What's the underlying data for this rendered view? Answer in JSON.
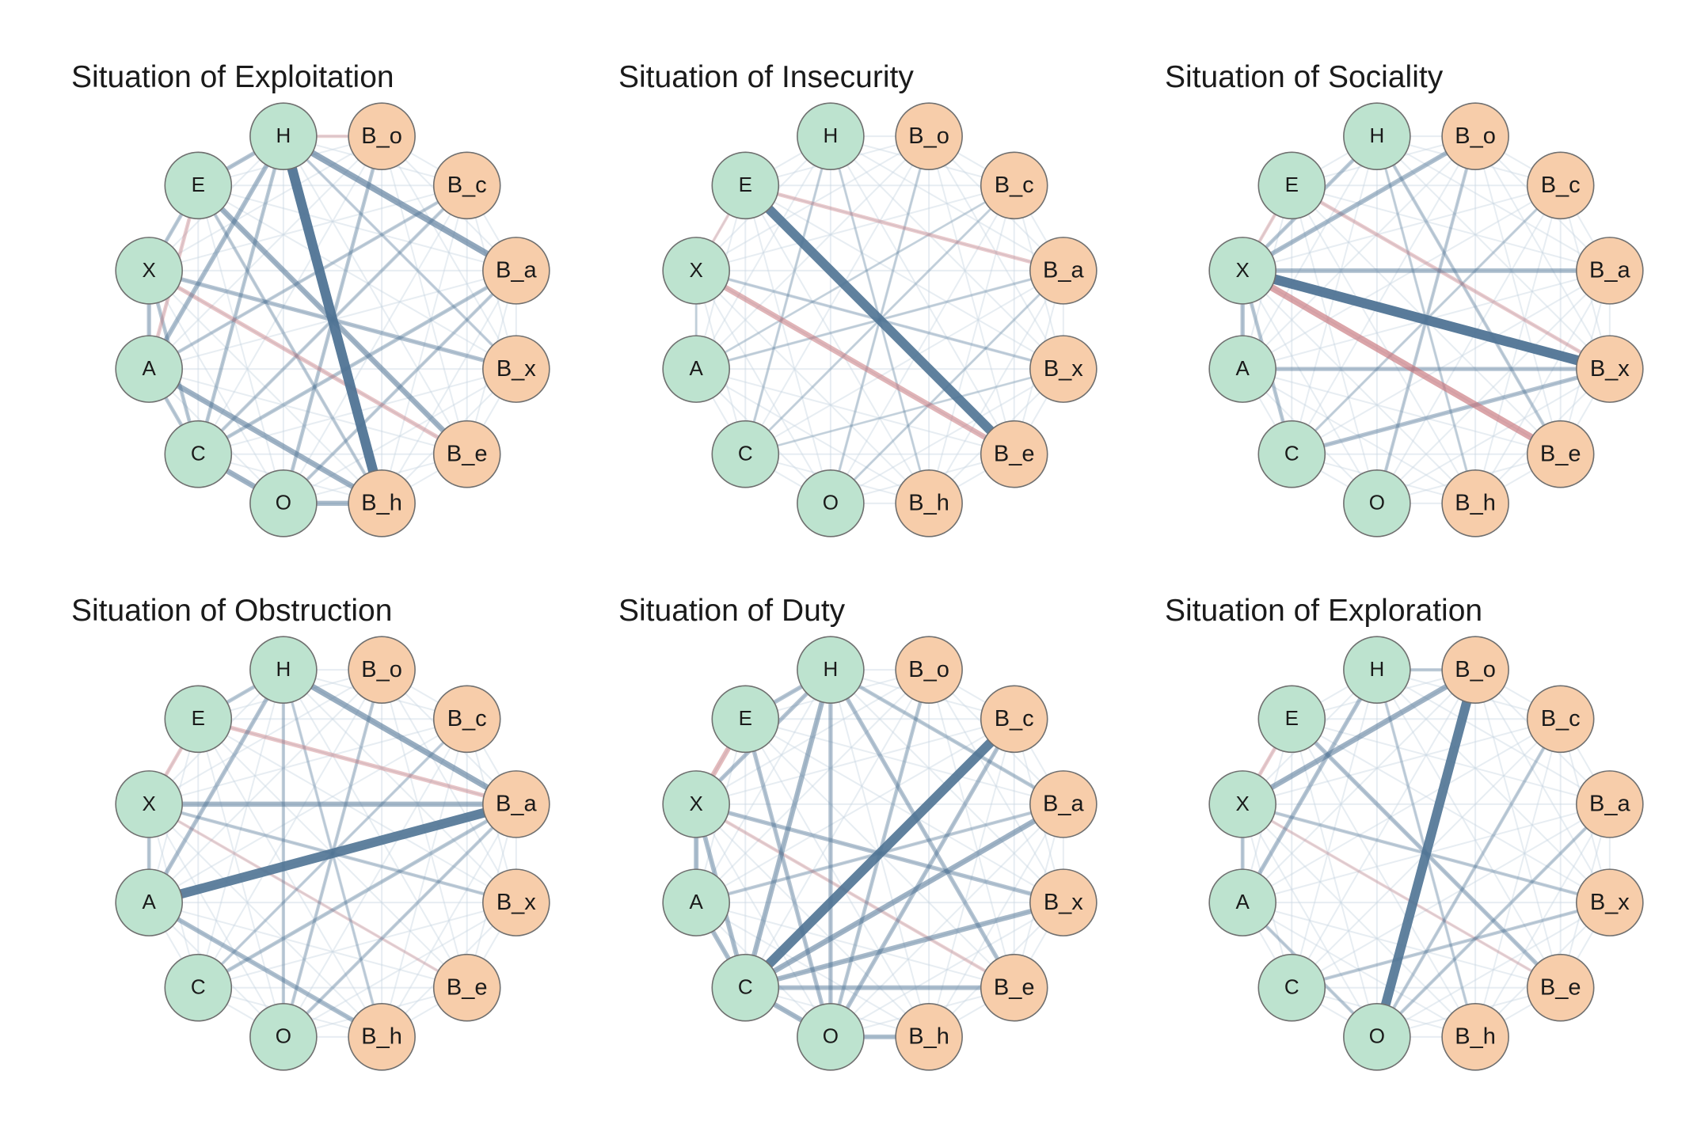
{
  "colors": {
    "trait_fill": "#bde3cf",
    "behavior_fill": "#f7cdaa",
    "node_stroke": "#6f6f6f",
    "positive_edge": "#4f7394",
    "negative_edge": "#c8777c"
  },
  "nodes": [
    {
      "id": "H",
      "label": "H",
      "group": "trait"
    },
    {
      "id": "B_o",
      "label": "B_o",
      "group": "behavior"
    },
    {
      "id": "B_c",
      "label": "B_c",
      "group": "behavior"
    },
    {
      "id": "B_a",
      "label": "B_a",
      "group": "behavior"
    },
    {
      "id": "B_x",
      "label": "B_x",
      "group": "behavior"
    },
    {
      "id": "B_e",
      "label": "B_e",
      "group": "behavior"
    },
    {
      "id": "B_h",
      "label": "B_h",
      "group": "behavior"
    },
    {
      "id": "O",
      "label": "O",
      "group": "trait"
    },
    {
      "id": "C",
      "label": "C",
      "group": "trait"
    },
    {
      "id": "A",
      "label": "A",
      "group": "trait"
    },
    {
      "id": "X",
      "label": "X",
      "group": "trait"
    },
    {
      "id": "E",
      "label": "E",
      "group": "trait"
    }
  ],
  "panels": [
    {
      "title": "Situation of Exploitation",
      "edges": [
        {
          "from": "H",
          "to": "B_h",
          "w": 0.95,
          "sign": "+"
        },
        {
          "from": "H",
          "to": "B_a",
          "w": 0.55,
          "sign": "+"
        },
        {
          "from": "E",
          "to": "B_e",
          "w": 0.45,
          "sign": "+"
        },
        {
          "from": "A",
          "to": "B_h",
          "w": 0.45,
          "sign": "+"
        },
        {
          "from": "C",
          "to": "O",
          "w": 0.45,
          "sign": "+"
        },
        {
          "from": "O",
          "to": "B_h",
          "w": 0.4,
          "sign": "+"
        },
        {
          "from": "H",
          "to": "A",
          "w": 0.35,
          "sign": "+"
        },
        {
          "from": "H",
          "to": "E",
          "w": 0.3,
          "sign": "+"
        },
        {
          "from": "H",
          "to": "C",
          "w": 0.25,
          "sign": "+"
        },
        {
          "from": "E",
          "to": "X",
          "w": 0.25,
          "sign": "+"
        },
        {
          "from": "X",
          "to": "A",
          "w": 0.3,
          "sign": "+"
        },
        {
          "from": "X",
          "to": "C",
          "w": 0.25,
          "sign": "+"
        },
        {
          "from": "A",
          "to": "C",
          "w": 0.25,
          "sign": "+"
        },
        {
          "from": "X",
          "to": "B_x",
          "w": 0.3,
          "sign": "+"
        },
        {
          "from": "C",
          "to": "B_a",
          "w": 0.25,
          "sign": "+"
        },
        {
          "from": "O",
          "to": "B_a",
          "w": 0.2,
          "sign": "+"
        },
        {
          "from": "B_o",
          "to": "O",
          "w": 0.25,
          "sign": "+"
        },
        {
          "from": "B_c",
          "to": "A",
          "w": 0.2,
          "sign": "+"
        },
        {
          "from": "B_c",
          "to": "C",
          "w": 0.2,
          "sign": "+"
        },
        {
          "from": "E",
          "to": "B_h",
          "w": 0.2,
          "sign": "+"
        },
        {
          "from": "X",
          "to": "B_e",
          "w": 0.3,
          "sign": "-"
        },
        {
          "from": "E",
          "to": "A",
          "w": 0.25,
          "sign": "-"
        },
        {
          "from": "H",
          "to": "B_o",
          "w": 0.2,
          "sign": "-"
        },
        {
          "from": "H",
          "to": "B_x",
          "w": 0.15,
          "sign": "+"
        }
      ]
    },
    {
      "title": "Situation of Insecurity",
      "edges": [
        {
          "from": "E",
          "to": "B_e",
          "w": 0.9,
          "sign": "+"
        },
        {
          "from": "X",
          "to": "B_e",
          "w": 0.45,
          "sign": "-"
        },
        {
          "from": "E",
          "to": "B_a",
          "w": 0.25,
          "sign": "-"
        },
        {
          "from": "X",
          "to": "B_x",
          "w": 0.15,
          "sign": "+"
        },
        {
          "from": "H",
          "to": "C",
          "w": 0.12,
          "sign": "+"
        },
        {
          "from": "B_o",
          "to": "O",
          "w": 0.12,
          "sign": "+"
        },
        {
          "from": "A",
          "to": "B_a",
          "w": 0.12,
          "sign": "+"
        },
        {
          "from": "E",
          "to": "X",
          "w": 0.15,
          "sign": "-"
        },
        {
          "from": "B_c",
          "to": "C",
          "w": 0.1,
          "sign": "+"
        },
        {
          "from": "H",
          "to": "B_h",
          "w": 0.1,
          "sign": "+"
        },
        {
          "from": "X",
          "to": "A",
          "w": 0.1,
          "sign": "+"
        },
        {
          "from": "O",
          "to": "B_a",
          "w": 0.1,
          "sign": "+"
        },
        {
          "from": "C",
          "to": "B_x",
          "w": 0.08,
          "sign": "+"
        },
        {
          "from": "A",
          "to": "B_c",
          "w": 0.08,
          "sign": "+"
        }
      ]
    },
    {
      "title": "Situation of Sociality",
      "edges": [
        {
          "from": "X",
          "to": "B_x",
          "w": 0.95,
          "sign": "+"
        },
        {
          "from": "X",
          "to": "B_e",
          "w": 0.6,
          "sign": "-"
        },
        {
          "from": "X",
          "to": "B_o",
          "w": 0.35,
          "sign": "+"
        },
        {
          "from": "X",
          "to": "B_a",
          "w": 0.35,
          "sign": "+"
        },
        {
          "from": "C",
          "to": "B_x",
          "w": 0.3,
          "sign": "+"
        },
        {
          "from": "A",
          "to": "B_x",
          "w": 0.3,
          "sign": "+"
        },
        {
          "from": "X",
          "to": "A",
          "w": 0.3,
          "sign": "+"
        },
        {
          "from": "E",
          "to": "B_x",
          "w": 0.25,
          "sign": "-"
        },
        {
          "from": "X",
          "to": "H",
          "w": 0.25,
          "sign": "+"
        },
        {
          "from": "X",
          "to": "C",
          "w": 0.25,
          "sign": "+"
        },
        {
          "from": "E",
          "to": "X",
          "w": 0.2,
          "sign": "-"
        },
        {
          "from": "H",
          "to": "B_e",
          "w": 0.2,
          "sign": "+"
        },
        {
          "from": "B_o",
          "to": "O",
          "w": 0.2,
          "sign": "+"
        },
        {
          "from": "H",
          "to": "B_h",
          "w": 0.12,
          "sign": "+"
        },
        {
          "from": "B_c",
          "to": "C",
          "w": 0.12,
          "sign": "+"
        }
      ]
    },
    {
      "title": "Situation of Obstruction",
      "edges": [
        {
          "from": "A",
          "to": "B_a",
          "w": 0.9,
          "sign": "+"
        },
        {
          "from": "H",
          "to": "B_a",
          "w": 0.5,
          "sign": "+"
        },
        {
          "from": "X",
          "to": "B_a",
          "w": 0.4,
          "sign": "+"
        },
        {
          "from": "E",
          "to": "B_a",
          "w": 0.3,
          "sign": "-"
        },
        {
          "from": "A",
          "to": "B_h",
          "w": 0.35,
          "sign": "+"
        },
        {
          "from": "H",
          "to": "A",
          "w": 0.3,
          "sign": "+"
        },
        {
          "from": "H",
          "to": "E",
          "w": 0.25,
          "sign": "+"
        },
        {
          "from": "X",
          "to": "A",
          "w": 0.25,
          "sign": "+"
        },
        {
          "from": "E",
          "to": "X",
          "w": 0.25,
          "sign": "-"
        },
        {
          "from": "C",
          "to": "B_a",
          "w": 0.25,
          "sign": "+"
        },
        {
          "from": "O",
          "to": "B_a",
          "w": 0.2,
          "sign": "+"
        },
        {
          "from": "H",
          "to": "O",
          "w": 0.2,
          "sign": "+"
        },
        {
          "from": "B_o",
          "to": "O",
          "w": 0.2,
          "sign": "+"
        },
        {
          "from": "X",
          "to": "B_e",
          "w": 0.15,
          "sign": "-"
        },
        {
          "from": "B_c",
          "to": "C",
          "w": 0.15,
          "sign": "+"
        },
        {
          "from": "X",
          "to": "B_x",
          "w": 0.2,
          "sign": "+"
        },
        {
          "from": "H",
          "to": "B_h",
          "w": 0.15,
          "sign": "+"
        }
      ]
    },
    {
      "title": "Situation of Duty",
      "edges": [
        {
          "from": "C",
          "to": "B_c",
          "w": 0.9,
          "sign": "+"
        },
        {
          "from": "C",
          "to": "B_a",
          "w": 0.45,
          "sign": "+"
        },
        {
          "from": "C",
          "to": "B_x",
          "w": 0.4,
          "sign": "+"
        },
        {
          "from": "C",
          "to": "B_e",
          "w": 0.35,
          "sign": "+"
        },
        {
          "from": "O",
          "to": "B_h",
          "w": 0.35,
          "sign": "+"
        },
        {
          "from": "H",
          "to": "C",
          "w": 0.4,
          "sign": "+"
        },
        {
          "from": "H",
          "to": "O",
          "w": 0.3,
          "sign": "+"
        },
        {
          "from": "H",
          "to": "B_e",
          "w": 0.3,
          "sign": "+"
        },
        {
          "from": "E",
          "to": "X",
          "w": 0.4,
          "sign": "-"
        },
        {
          "from": "X",
          "to": "A",
          "w": 0.35,
          "sign": "+"
        },
        {
          "from": "X",
          "to": "C",
          "w": 0.35,
          "sign": "+"
        },
        {
          "from": "A",
          "to": "C",
          "w": 0.35,
          "sign": "+"
        },
        {
          "from": "C",
          "to": "O",
          "w": 0.4,
          "sign": "+"
        },
        {
          "from": "E",
          "to": "O",
          "w": 0.3,
          "sign": "+"
        },
        {
          "from": "E",
          "to": "H",
          "w": 0.3,
          "sign": "+"
        },
        {
          "from": "X",
          "to": "H",
          "w": 0.3,
          "sign": "+"
        },
        {
          "from": "O",
          "to": "B_c",
          "w": 0.3,
          "sign": "+"
        },
        {
          "from": "X",
          "to": "B_x",
          "w": 0.3,
          "sign": "+"
        },
        {
          "from": "B_o",
          "to": "O",
          "w": 0.25,
          "sign": "+"
        },
        {
          "from": "H",
          "to": "B_a",
          "w": 0.25,
          "sign": "+"
        },
        {
          "from": "A",
          "to": "B_a",
          "w": 0.2,
          "sign": "+"
        },
        {
          "from": "X",
          "to": "B_e",
          "w": 0.2,
          "sign": "-"
        }
      ]
    },
    {
      "title": "Situation of Exploration",
      "edges": [
        {
          "from": "B_o",
          "to": "O",
          "w": 0.9,
          "sign": "+"
        },
        {
          "from": "X",
          "to": "B_o",
          "w": 0.45,
          "sign": "+"
        },
        {
          "from": "E",
          "to": "B_e",
          "w": 0.3,
          "sign": "+"
        },
        {
          "from": "H",
          "to": "A",
          "w": 0.3,
          "sign": "+"
        },
        {
          "from": "X",
          "to": "A",
          "w": 0.25,
          "sign": "+"
        },
        {
          "from": "E",
          "to": "X",
          "w": 0.25,
          "sign": "-"
        },
        {
          "from": "H",
          "to": "B_o",
          "w": 0.2,
          "sign": "+"
        },
        {
          "from": "O",
          "to": "B_a",
          "w": 0.2,
          "sign": "+"
        },
        {
          "from": "O",
          "to": "B_c",
          "w": 0.2,
          "sign": "+"
        },
        {
          "from": "C",
          "to": "B_x",
          "w": 0.2,
          "sign": "+"
        },
        {
          "from": "X",
          "to": "B_x",
          "w": 0.2,
          "sign": "+"
        },
        {
          "from": "X",
          "to": "B_e",
          "w": 0.15,
          "sign": "-"
        },
        {
          "from": "A",
          "to": "O",
          "w": 0.2,
          "sign": "+"
        },
        {
          "from": "H",
          "to": "B_h",
          "w": 0.15,
          "sign": "+"
        }
      ]
    }
  ]
}
